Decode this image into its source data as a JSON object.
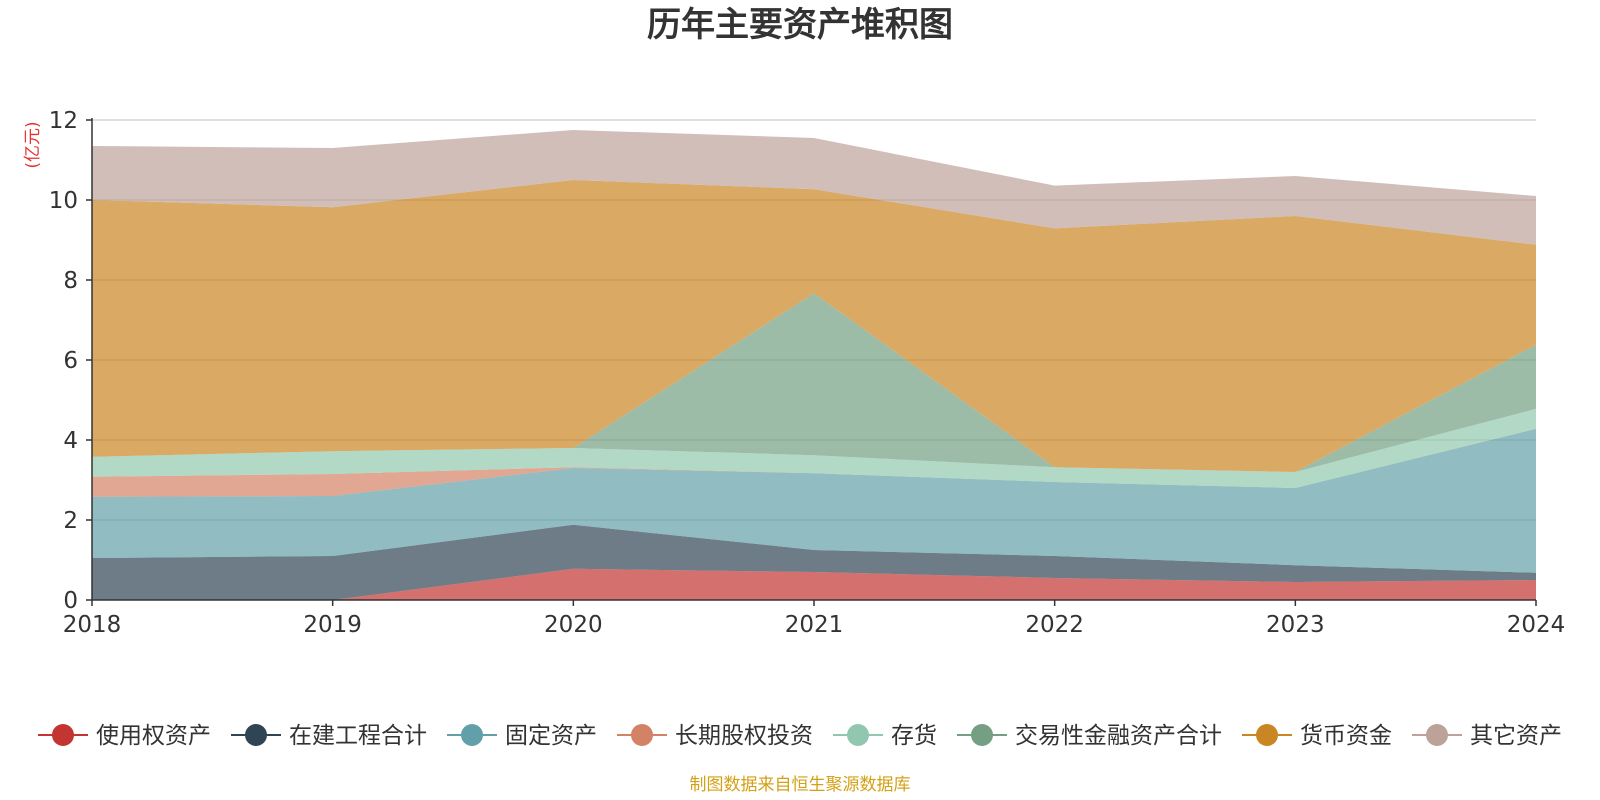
{
  "chart_data": {
    "type": "area",
    "stacked": true,
    "title": "历年主要资产堆积图",
    "unit_label": "(亿元)",
    "source_note": "制图数据来自恒生聚源数据库",
    "categories": [
      "2018",
      "2019",
      "2020",
      "2021",
      "2022",
      "2023",
      "2024"
    ],
    "ylim": [
      0,
      12
    ],
    "yticks": [
      0,
      2,
      4,
      6,
      8,
      10,
      12
    ],
    "grid": true,
    "legend_position": "bottom",
    "series": [
      {
        "name": "使用权资产",
        "color": "#c23531",
        "values": [
          0,
          0,
          0.78,
          0.7,
          0.55,
          0.45,
          0.5
        ]
      },
      {
        "name": "在建工程合计",
        "color": "#2f4554",
        "values": [
          1.05,
          1.1,
          1.1,
          0.55,
          0.55,
          0.42,
          0.18
        ]
      },
      {
        "name": "固定资产",
        "color": "#61a0a8",
        "values": [
          1.53,
          1.5,
          1.42,
          1.92,
          1.85,
          1.93,
          3.6
        ]
      },
      {
        "name": "长期股权投资",
        "color": "#d48265",
        "values": [
          0.5,
          0.55,
          0.02,
          0,
          0,
          0,
          0
        ]
      },
      {
        "name": "存货",
        "color": "#91c7ae",
        "values": [
          0.5,
          0.57,
          0.48,
          0.45,
          0.37,
          0.4,
          0.5
        ]
      },
      {
        "name": "交易性金融资产合计",
        "color": "#749f83",
        "values": [
          0,
          0,
          0,
          4.05,
          0,
          0,
          1.6
        ]
      },
      {
        "name": "货币资金",
        "color": "#ca8622",
        "values": [
          6.42,
          6.1,
          6.7,
          2.6,
          5.97,
          6.4,
          2.5
        ]
      },
      {
        "name": "其它资产",
        "color": "#bda29a",
        "values": [
          1.35,
          1.48,
          1.25,
          1.28,
          1.07,
          1.0,
          1.22
        ]
      }
    ]
  }
}
